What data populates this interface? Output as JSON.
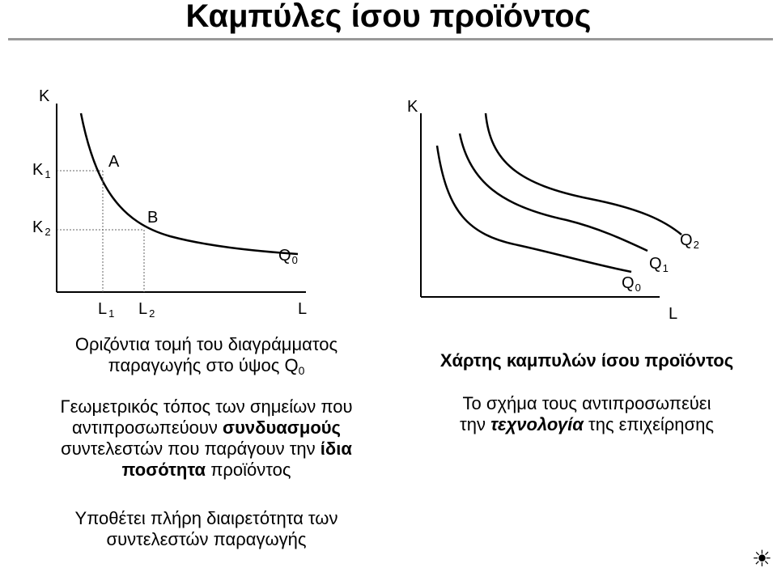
{
  "title": "Καμπύλες ίσου προϊόντος",
  "left_diagram": {
    "y_axis": "K",
    "x_axis": "L",
    "k1": "K",
    "k1_sub": "1",
    "k2": "K",
    "k2_sub": "2",
    "l1": "L",
    "l1_sub": "1",
    "l2": "L",
    "l2_sub": "2",
    "point_a": "A",
    "point_b": "B",
    "curve": "Q",
    "curve_sub": "0"
  },
  "right_diagram": {
    "y_axis": "K",
    "x_axis": "L",
    "q0": "Q",
    "q0_sub": "0",
    "q1": "Q",
    "q1_sub": "1",
    "q2": "Q",
    "q2_sub": "2"
  },
  "left_text": {
    "p1_line1": "Οριζόντια τομή του διαγράμματος",
    "p1_line2": "παραγωγής στο ύψος Q",
    "p1_sub": "0",
    "p2_line1": "Γεωμετρικός τόπος των σημείων που",
    "p2_line2a": "αντιπροσωπεύουν ",
    "p2_line2b": "συνδυασμούς",
    "p2_line3a": "συντελεστών που παράγουν την ",
    "p2_line3b": "ίδια",
    "p2_line4a": "ποσότητα",
    "p2_line4b": " προϊόντος",
    "p3_line1": "Υποθέτει πλήρη διαιρετότητα των",
    "p3_line2": "συντελεστών παραγωγής"
  },
  "right_text": {
    "heading": "Χάρτης καμπυλών ίσου προϊόντος",
    "line1": "Το σχήμα τους αντιπροσωπεύει",
    "line2a": "την ",
    "line2b": "τεχνολογία",
    "line2c": " της επιχείρησης"
  },
  "corner_icon": "sun-icon",
  "colors": {
    "rule": "#999999",
    "ink": "#000000"
  }
}
